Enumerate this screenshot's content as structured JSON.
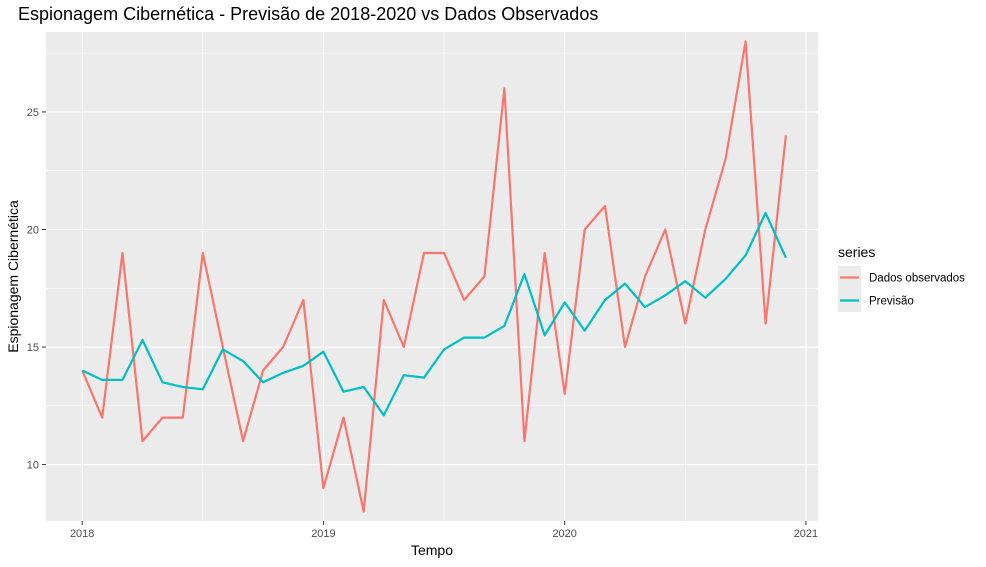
{
  "chart_data": {
    "type": "line",
    "title": "Espionagem Cibernética - Previsão de 2018-2020 vs Dados Observados",
    "xlabel": "Tempo",
    "ylabel": "Espionagem Cibernética",
    "x_ticks": [
      "2018",
      "2019",
      "2020",
      "2021"
    ],
    "y_ticks": [
      "10",
      "15",
      "20",
      "25"
    ],
    "xlim": [
      2017.85,
      2021.05
    ],
    "ylim": [
      7.6,
      28.4
    ],
    "grid": true,
    "legend": {
      "title": "series",
      "position": "right"
    },
    "x": [
      2018.0,
      2018.083,
      2018.167,
      2018.25,
      2018.333,
      2018.417,
      2018.5,
      2018.583,
      2018.667,
      2018.75,
      2018.833,
      2018.917,
      2019.0,
      2019.083,
      2019.167,
      2019.25,
      2019.333,
      2019.417,
      2019.5,
      2019.583,
      2019.667,
      2019.75,
      2019.833,
      2019.917,
      2020.0,
      2020.083,
      2020.167,
      2020.25,
      2020.333,
      2020.417,
      2020.5,
      2020.583,
      2020.667,
      2020.75,
      2020.833,
      2020.917
    ],
    "series": [
      {
        "name": "Dados observados",
        "color": "#F8766D",
        "values": [
          14,
          12,
          19,
          11,
          12,
          12,
          19,
          15,
          11,
          14,
          15,
          17,
          9,
          12,
          8,
          17,
          15,
          19,
          19,
          17,
          18,
          26,
          11,
          19,
          13,
          20,
          21,
          15,
          18,
          20,
          16,
          20,
          23,
          28,
          16,
          24
        ]
      },
      {
        "name": "Previsão",
        "color": "#00BFC4",
        "values": [
          14.0,
          13.6,
          13.6,
          15.3,
          13.5,
          13.3,
          13.2,
          14.9,
          14.4,
          13.5,
          13.9,
          14.2,
          14.8,
          13.1,
          13.3,
          12.1,
          13.8,
          13.7,
          14.9,
          15.4,
          15.4,
          15.9,
          18.1,
          15.5,
          16.9,
          15.7,
          17.0,
          17.7,
          16.7,
          17.2,
          17.8,
          17.1,
          17.9,
          18.9,
          20.7,
          18.8
        ]
      }
    ]
  }
}
